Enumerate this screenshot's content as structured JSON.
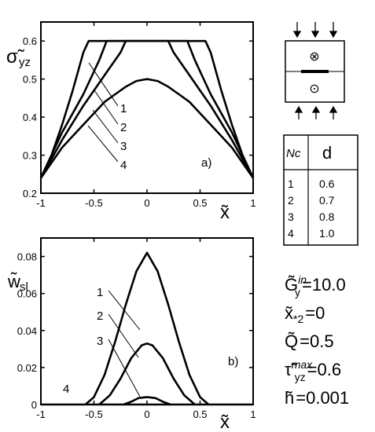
{
  "chart_data": [
    {
      "type": "line",
      "panel_label": "a)",
      "xlabel": "x̃",
      "ylabel": "σ̃",
      "ylabel_sub": "yz",
      "xlim": [
        -1,
        1
      ],
      "ylim": [
        0.2,
        0.65
      ],
      "xticks": [
        -1,
        -0.5,
        0,
        0.5,
        1
      ],
      "xtick_labels": [
        "-1",
        "-0.5",
        "0",
        "0.5",
        "1"
      ],
      "yticks": [
        0.2,
        0.3,
        0.4,
        0.5,
        0.6
      ],
      "ytick_labels": [
        "0.2",
        "0.3",
        "0.4",
        "0.5",
        "0.6"
      ],
      "series": [
        {
          "name": "1",
          "x": [
            -1,
            -0.9,
            -0.8,
            -0.7,
            -0.6,
            -0.55,
            0.0,
            0.55,
            0.6,
            0.7,
            0.8,
            0.9,
            1
          ],
          "y": [
            0.24,
            0.3,
            0.38,
            0.47,
            0.57,
            0.6,
            0.6,
            0.6,
            0.57,
            0.47,
            0.38,
            0.3,
            0.24
          ]
        },
        {
          "name": "2",
          "x": [
            -1,
            -0.8,
            -0.6,
            -0.45,
            -0.38,
            0.0,
            0.38,
            0.45,
            0.6,
            0.8,
            1
          ],
          "y": [
            0.24,
            0.36,
            0.46,
            0.55,
            0.6,
            0.6,
            0.6,
            0.55,
            0.46,
            0.36,
            0.24
          ]
        },
        {
          "name": "3",
          "x": [
            -1,
            -0.8,
            -0.6,
            -0.4,
            -0.25,
            -0.2,
            0.0,
            0.2,
            0.25,
            0.4,
            0.6,
            0.8,
            1
          ],
          "y": [
            0.24,
            0.34,
            0.43,
            0.51,
            0.57,
            0.6,
            0.6,
            0.6,
            0.57,
            0.51,
            0.43,
            0.34,
            0.24
          ]
        },
        {
          "name": "4",
          "x": [
            -1,
            -0.9,
            -0.8,
            -0.7,
            -0.6,
            -0.5,
            -0.4,
            -0.3,
            -0.2,
            -0.1,
            0.0,
            0.1,
            0.2,
            0.3,
            0.4,
            0.5,
            0.6,
            0.7,
            0.8,
            0.9,
            1
          ],
          "y": [
            0.24,
            0.28,
            0.32,
            0.35,
            0.38,
            0.41,
            0.44,
            0.46,
            0.48,
            0.495,
            0.5,
            0.495,
            0.48,
            0.46,
            0.44,
            0.41,
            0.38,
            0.35,
            0.32,
            0.28,
            0.24
          ]
        }
      ]
    },
    {
      "type": "line",
      "panel_label": "b)",
      "xlabel": "x̃",
      "ylabel": "w̃",
      "ylabel_sub": "sl",
      "xlim": [
        -1,
        1
      ],
      "ylim": [
        0,
        0.09
      ],
      "xticks": [
        -1,
        -0.5,
        0,
        0.5,
        1
      ],
      "xtick_labels": [
        "-1",
        "-0.5",
        "0",
        "0.5",
        "1"
      ],
      "yticks": [
        0,
        0.02,
        0.04,
        0.06,
        0.08
      ],
      "ytick_labels": [
        "0",
        "0.02",
        "0.04",
        "0.06",
        "0.08"
      ],
      "series": [
        {
          "name": "1",
          "x": [
            -0.58,
            -0.5,
            -0.4,
            -0.3,
            -0.2,
            -0.1,
            0.0,
            0.1,
            0.2,
            0.3,
            0.4,
            0.5,
            0.58
          ],
          "y": [
            0.0,
            0.004,
            0.016,
            0.034,
            0.054,
            0.072,
            0.082,
            0.072,
            0.054,
            0.034,
            0.016,
            0.004,
            0.0
          ]
        },
        {
          "name": "2",
          "x": [
            -0.45,
            -0.35,
            -0.25,
            -0.15,
            -0.05,
            0.0,
            0.05,
            0.15,
            0.25,
            0.35,
            0.45
          ],
          "y": [
            0.0,
            0.005,
            0.014,
            0.025,
            0.032,
            0.033,
            0.032,
            0.025,
            0.014,
            0.005,
            0.0
          ]
        },
        {
          "name": "3",
          "x": [
            -0.22,
            -0.15,
            -0.08,
            0.0,
            0.08,
            0.15,
            0.22
          ],
          "y": [
            0.0,
            0.0015,
            0.0035,
            0.004,
            0.0035,
            0.0015,
            0.0
          ]
        },
        {
          "name": "4",
          "x": [
            -1,
            1
          ],
          "y": [
            0.0,
            0.0
          ]
        }
      ]
    }
  ],
  "curve_labels_a": [
    "1",
    "2",
    "3",
    "4"
  ],
  "curve_labels_b": [
    "1",
    "2",
    "3",
    "4"
  ],
  "legend_table": {
    "headers": [
      "Nc",
      "d"
    ],
    "rows": [
      [
        "1",
        "0.6"
      ],
      [
        "2",
        "0.7"
      ],
      [
        "3",
        "0.8"
      ],
      [
        "4",
        "1.0"
      ]
    ]
  },
  "schematic": {
    "cross_symbol": "⊗",
    "dot_symbol": "⊙"
  },
  "parameters": [
    {
      "symbol": "G̃",
      "sub": "y",
      "sup": "in",
      "value": "=10.0"
    },
    {
      "symbol": "x̃",
      "sub": "*2",
      "sup": "",
      "value": "=0"
    },
    {
      "symbol": "Q̃",
      "sub": "",
      "sup": "",
      "value": "=0.5"
    },
    {
      "symbol": "τ̃",
      "sub": "yz",
      "sup": "max",
      "value": "=0.6"
    },
    {
      "symbol": "h̃",
      "sub": "",
      "sup": "",
      "value": "=0.001"
    }
  ]
}
